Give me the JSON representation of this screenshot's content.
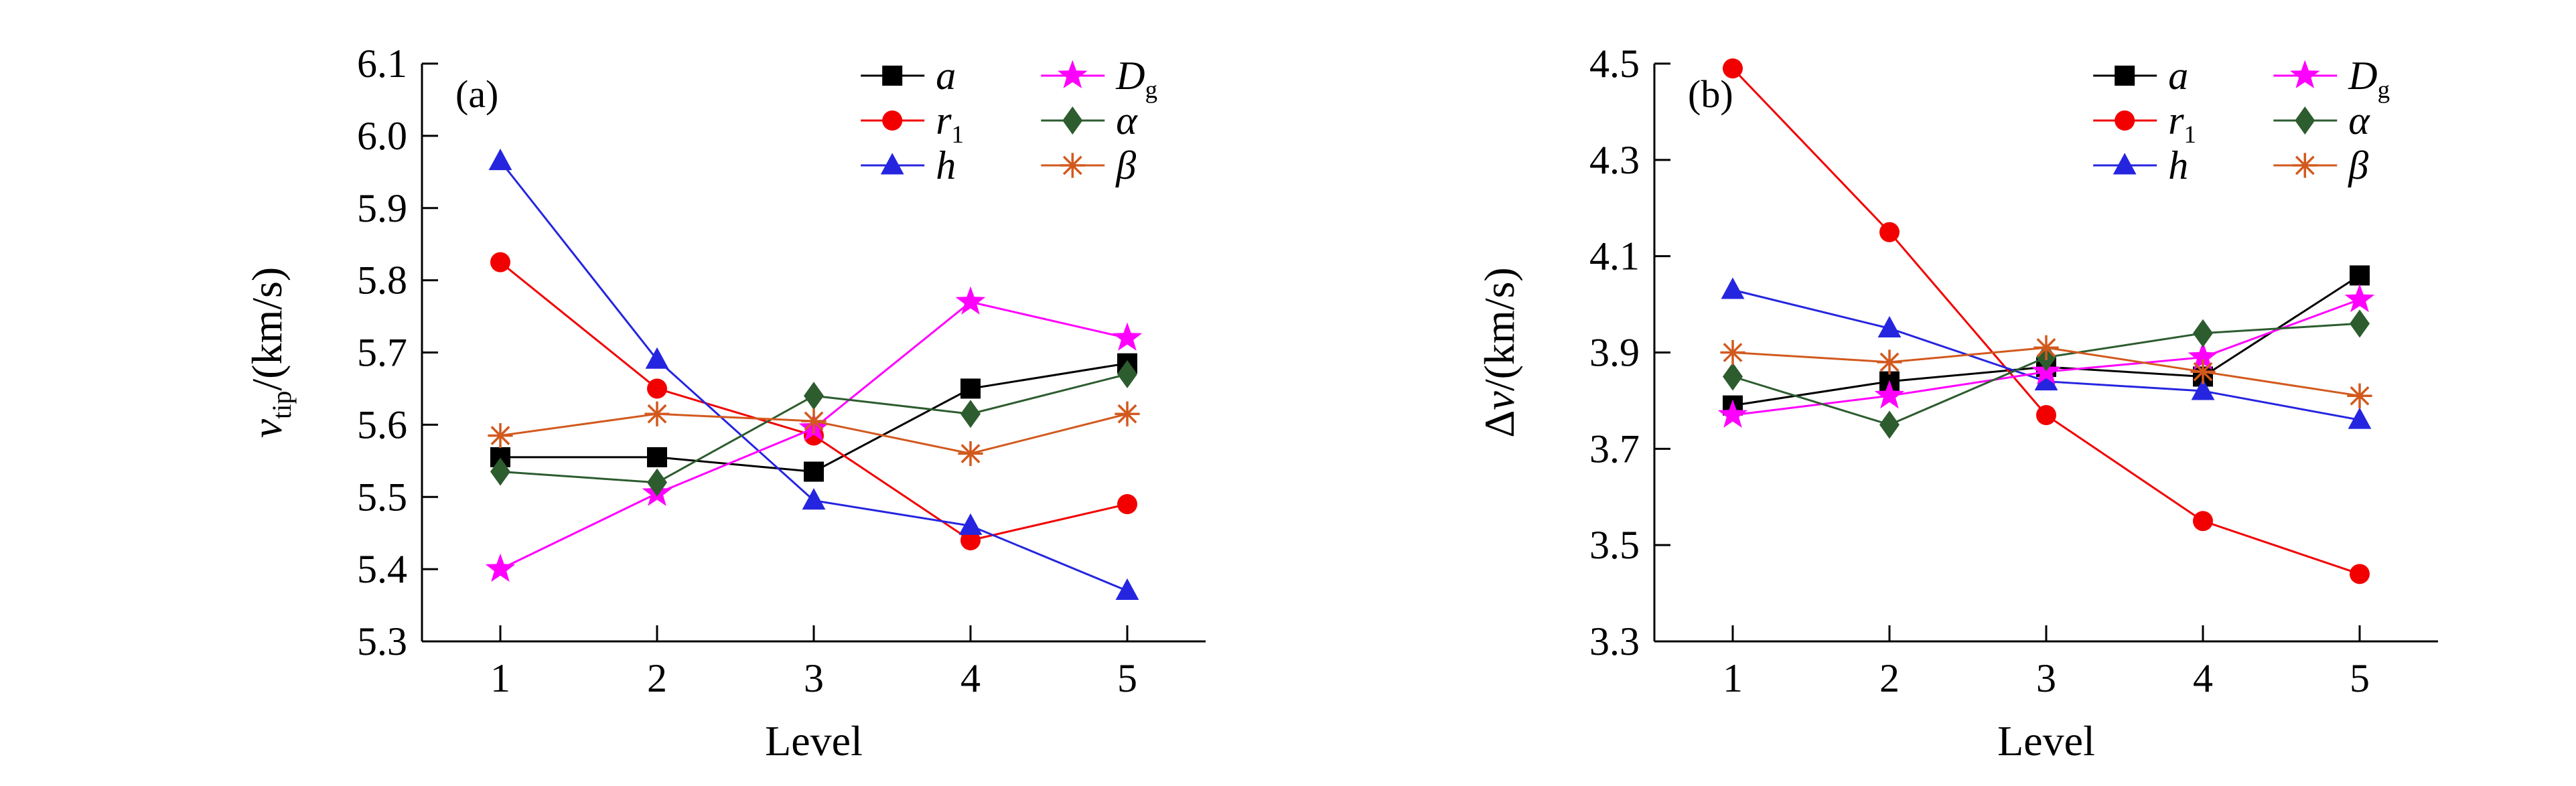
{
  "figure": {
    "background": "#ffffff",
    "panel_labels": [
      "(a)",
      "(b)"
    ]
  },
  "chart_data": [
    {
      "type": "line",
      "panel_label": "(a)",
      "xlabel": "Level",
      "ylabel": "v_tip/(km/s)",
      "ylabel_parts": [
        {
          "text": "v",
          "style": "italic"
        },
        {
          "text": "tip",
          "style": "sub"
        },
        {
          "text": "/(km/s)",
          "style": "plain"
        }
      ],
      "x": [
        1,
        2,
        3,
        4,
        5
      ],
      "ylim": [
        5.3,
        6.1
      ],
      "y_ticks": [
        5.3,
        5.4,
        5.5,
        5.6,
        5.7,
        5.8,
        5.9,
        6.0,
        6.1
      ],
      "y_step": 0.1,
      "y_decimals": 1,
      "grid": false,
      "legend_position": "top-right",
      "legend_columns": [
        [
          0,
          1,
          2
        ],
        [
          3,
          4,
          5
        ]
      ],
      "legend_col_x": [
        0.56,
        0.79
      ],
      "series": [
        {
          "id": "a",
          "name": "a",
          "color": "#000000",
          "marker": "square",
          "label_parts": [
            {
              "text": "a",
              "style": "italic"
            }
          ],
          "values": [
            5.555,
            5.555,
            5.535,
            5.65,
            5.685
          ]
        },
        {
          "id": "r1",
          "name": "r1",
          "color": "#f20000",
          "marker": "circle",
          "label_parts": [
            {
              "text": "r",
              "style": "italic"
            },
            {
              "text": "1",
              "style": "sub"
            }
          ],
          "values": [
            5.825,
            5.65,
            5.585,
            5.44,
            5.49
          ]
        },
        {
          "id": "h",
          "name": "h",
          "color": "#2525e0",
          "marker": "triangle",
          "label_parts": [
            {
              "text": "h",
              "style": "italic"
            }
          ],
          "values": [
            5.965,
            5.69,
            5.495,
            5.46,
            5.37
          ]
        },
        {
          "id": "Dg",
          "name": "Dg",
          "color": "#ff00ff",
          "marker": "star",
          "label_parts": [
            {
              "text": "D",
              "style": "italic"
            },
            {
              "text": "g",
              "style": "sub"
            }
          ],
          "values": [
            5.4,
            5.505,
            5.595,
            5.77,
            5.72
          ]
        },
        {
          "id": "alpha",
          "name": "alpha",
          "color": "#2d5c2f",
          "marker": "diamond",
          "label_parts": [
            {
              "text": "α",
              "style": "italic"
            }
          ],
          "values": [
            5.535,
            5.52,
            5.64,
            5.615,
            5.67
          ]
        },
        {
          "id": "beta",
          "name": "beta",
          "color": "#d2591e",
          "marker": "asterisk",
          "label_parts": [
            {
              "text": "β",
              "style": "italic"
            }
          ],
          "values": [
            5.585,
            5.615,
            5.605,
            5.56,
            5.615
          ]
        }
      ]
    },
    {
      "type": "line",
      "panel_label": "(b)",
      "xlabel": "Level",
      "ylabel": "Δv/(km/s)",
      "ylabel_parts": [
        {
          "text": "Δ",
          "style": "plain"
        },
        {
          "text": "v",
          "style": "italic"
        },
        {
          "text": "/(km/s)",
          "style": "plain"
        }
      ],
      "x": [
        1,
        2,
        3,
        4,
        5
      ],
      "ylim": [
        3.3,
        4.5
      ],
      "y_ticks": [
        3.3,
        3.5,
        3.7,
        3.9,
        4.1,
        4.3,
        4.5
      ],
      "y_step": 0.2,
      "y_decimals": 1,
      "grid": false,
      "legend_position": "top-right",
      "legend_columns": [
        [
          0,
          1,
          2
        ],
        [
          3,
          4,
          5
        ]
      ],
      "legend_col_x": [
        0.56,
        0.79
      ],
      "series": [
        {
          "id": "a",
          "name": "a",
          "color": "#000000",
          "marker": "square",
          "label_parts": [
            {
              "text": "a",
              "style": "italic"
            }
          ],
          "values": [
            3.79,
            3.84,
            3.87,
            3.85,
            4.06
          ]
        },
        {
          "id": "r1",
          "name": "r1",
          "color": "#f20000",
          "marker": "circle",
          "label_parts": [
            {
              "text": "r",
              "style": "italic"
            },
            {
              "text": "1",
              "style": "sub"
            }
          ],
          "values": [
            4.49,
            4.15,
            3.77,
            3.55,
            3.44
          ]
        },
        {
          "id": "h",
          "name": "h",
          "color": "#2525e0",
          "marker": "triangle",
          "label_parts": [
            {
              "text": "h",
              "style": "italic"
            }
          ],
          "values": [
            4.03,
            3.95,
            3.84,
            3.82,
            3.76
          ]
        },
        {
          "id": "Dg",
          "name": "Dg",
          "color": "#ff00ff",
          "marker": "star",
          "label_parts": [
            {
              "text": "D",
              "style": "italic"
            },
            {
              "text": "g",
              "style": "sub"
            }
          ],
          "values": [
            3.77,
            3.81,
            3.86,
            3.89,
            4.01
          ]
        },
        {
          "id": "alpha",
          "name": "alpha",
          "color": "#2d5c2f",
          "marker": "diamond",
          "label_parts": [
            {
              "text": "α",
              "style": "italic"
            }
          ],
          "values": [
            3.85,
            3.75,
            3.89,
            3.94,
            3.96
          ]
        },
        {
          "id": "beta",
          "name": "beta",
          "color": "#d2591e",
          "marker": "asterisk",
          "label_parts": [
            {
              "text": "β",
              "style": "italic"
            }
          ],
          "values": [
            3.9,
            3.88,
            3.91,
            3.86,
            3.81
          ]
        }
      ]
    }
  ]
}
